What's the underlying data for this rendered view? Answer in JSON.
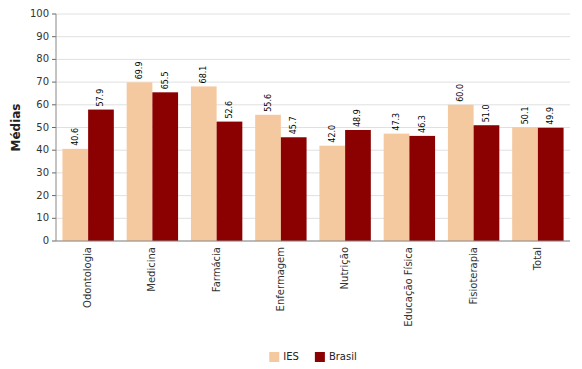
{
  "chart_data": {
    "type": "bar",
    "categories": [
      "Odontologia",
      "Medicina",
      "Farmácia",
      "Enfermagem",
      "Nutrição",
      "Educação Física",
      "Fisioterapia",
      "Total"
    ],
    "series": [
      {
        "name": "IES",
        "color": "#F5C9A0",
        "values": [
          40.6,
          69.9,
          68.1,
          55.6,
          42.0,
          47.3,
          60.0,
          50.1
        ],
        "value_labels": [
          "40.6",
          "69.9",
          "68.1",
          "55.6",
          "42.0",
          "47.3",
          "60.0",
          "50.1"
        ]
      },
      {
        "name": "Brasil",
        "color": "#8B0000",
        "values": [
          57.9,
          65.5,
          52.6,
          45.7,
          48.9,
          46.3,
          51.0,
          49.9
        ],
        "value_labels": [
          "57.9",
          "65.5",
          "52.6",
          "45.7",
          "48.9",
          "46.3",
          "51.0",
          "49.9"
        ]
      }
    ],
    "ylabel": "Médias",
    "ylim": [
      0,
      100
    ],
    "yticks": [
      0,
      10,
      20,
      30,
      40,
      50,
      60,
      70,
      80,
      90,
      100
    ],
    "grid": true,
    "data_labels": true,
    "legend": "bottom"
  }
}
